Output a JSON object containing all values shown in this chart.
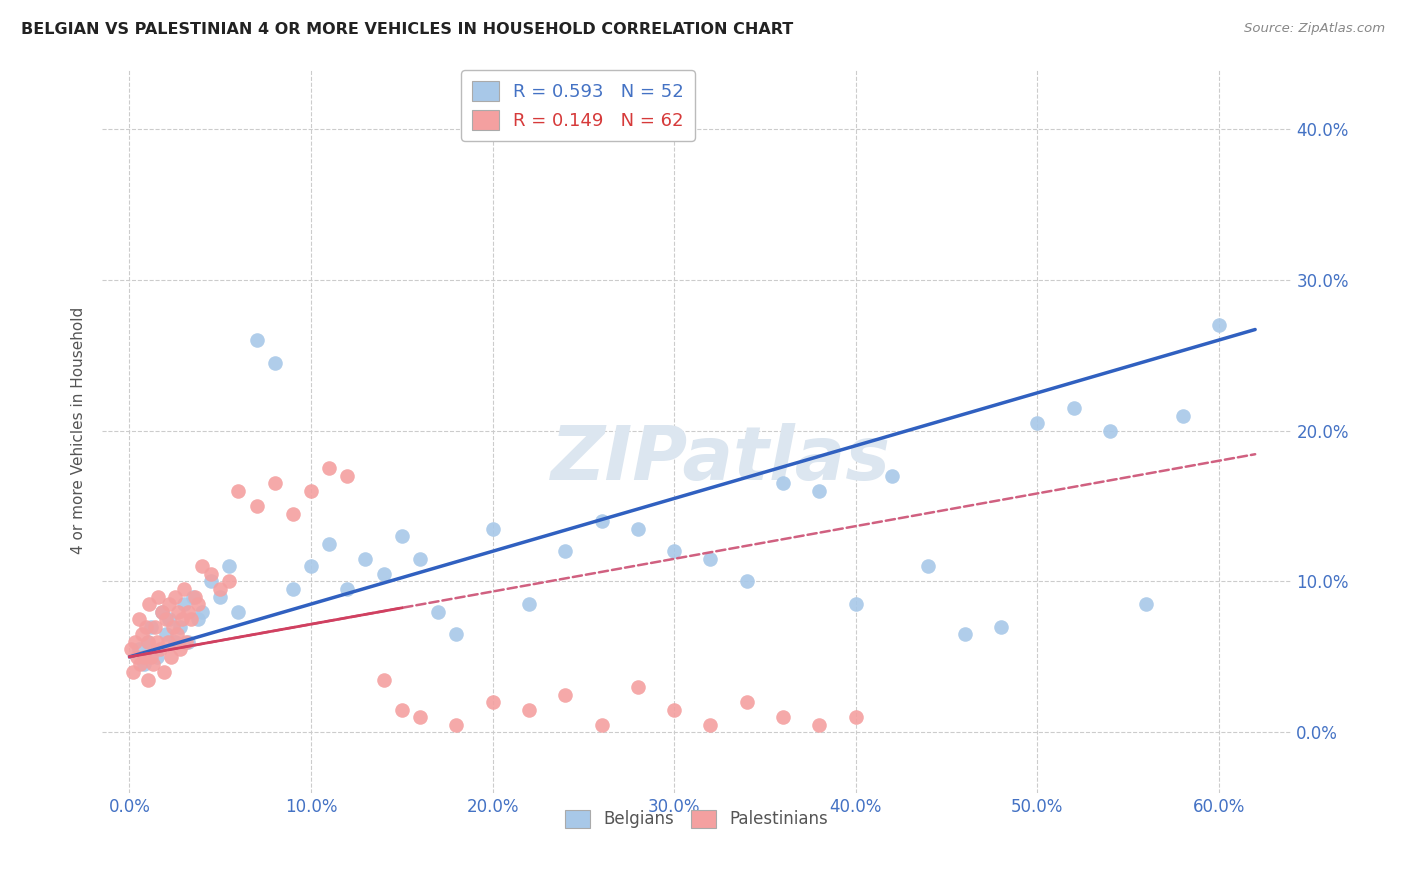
{
  "title": "BELGIAN VS PALESTINIAN 4 OR MORE VEHICLES IN HOUSEHOLD CORRELATION CHART",
  "source": "Source: ZipAtlas.com",
  "ylabel": "4 or more Vehicles in Household",
  "ylim": [
    -4.0,
    44.0
  ],
  "xlim": [
    -1.5,
    64.0
  ],
  "belgian_R": 0.593,
  "belgian_N": 52,
  "palestinian_R": 0.149,
  "palestinian_N": 62,
  "belgian_color": "#a8c8e8",
  "palestinian_color": "#f4a0a0",
  "belgian_line_color": "#3060c0",
  "palestinian_line_color": "#d04060",
  "palestinian_dash_color": "#d06080",
  "background_color": "#ffffff",
  "grid_color": "#cccccc",
  "watermark": "ZIPatlas",
  "watermark_color": "#dce6f0",
  "belgian_x": [
    0.5,
    0.8,
    1.0,
    1.2,
    1.5,
    1.8,
    2.0,
    2.2,
    2.5,
    2.8,
    3.0,
    3.2,
    3.5,
    3.8,
    4.0,
    4.5,
    5.0,
    5.5,
    6.0,
    7.0,
    8.0,
    9.0,
    10.0,
    11.0,
    12.0,
    13.0,
    14.0,
    15.0,
    16.0,
    17.0,
    18.0,
    20.0,
    22.0,
    24.0,
    26.0,
    28.0,
    30.0,
    32.0,
    34.0,
    36.0,
    38.0,
    40.0,
    42.0,
    44.0,
    46.0,
    48.0,
    50.0,
    52.0,
    54.0,
    56.0,
    58.0,
    60.0
  ],
  "belgian_y": [
    5.5,
    4.5,
    6.0,
    7.0,
    5.0,
    8.0,
    6.5,
    7.5,
    6.0,
    7.0,
    8.5,
    6.0,
    9.0,
    7.5,
    8.0,
    10.0,
    9.0,
    11.0,
    8.0,
    26.0,
    24.5,
    9.5,
    11.0,
    12.5,
    9.5,
    11.5,
    10.5,
    13.0,
    11.5,
    8.0,
    6.5,
    13.5,
    8.5,
    12.0,
    14.0,
    13.5,
    12.0,
    11.5,
    10.0,
    16.5,
    16.0,
    8.5,
    17.0,
    11.0,
    6.5,
    7.0,
    20.5,
    21.5,
    20.0,
    8.5,
    21.0,
    27.0
  ],
  "palestinian_x": [
    0.1,
    0.2,
    0.3,
    0.4,
    0.5,
    0.6,
    0.7,
    0.8,
    0.9,
    1.0,
    1.0,
    1.1,
    1.2,
    1.3,
    1.4,
    1.5,
    1.6,
    1.7,
    1.8,
    1.9,
    2.0,
    2.1,
    2.2,
    2.3,
    2.4,
    2.5,
    2.6,
    2.7,
    2.8,
    2.9,
    3.0,
    3.1,
    3.2,
    3.4,
    3.6,
    3.8,
    4.0,
    4.5,
    5.0,
    5.5,
    6.0,
    7.0,
    8.0,
    9.0,
    10.0,
    11.0,
    12.0,
    14.0,
    15.0,
    16.0,
    18.0,
    20.0,
    22.0,
    24.0,
    26.0,
    28.0,
    30.0,
    32.0,
    34.0,
    36.0,
    38.0,
    40.0
  ],
  "palestinian_y": [
    5.5,
    4.0,
    6.0,
    5.0,
    7.5,
    4.5,
    6.5,
    5.0,
    7.0,
    3.5,
    6.0,
    8.5,
    5.0,
    4.5,
    7.0,
    6.0,
    9.0,
    5.5,
    8.0,
    4.0,
    7.5,
    6.0,
    8.5,
    5.0,
    7.0,
    9.0,
    6.5,
    8.0,
    5.5,
    7.5,
    9.5,
    6.0,
    8.0,
    7.5,
    9.0,
    8.5,
    11.0,
    10.5,
    9.5,
    10.0,
    16.0,
    15.0,
    16.5,
    14.5,
    16.0,
    17.5,
    17.0,
    3.5,
    1.5,
    1.0,
    0.5,
    2.0,
    1.5,
    2.5,
    0.5,
    3.0,
    1.5,
    0.5,
    2.0,
    1.0,
    0.5,
    1.0
  ],
  "x_tick_vals": [
    0,
    10,
    20,
    30,
    40,
    50,
    60
  ],
  "y_tick_vals": [
    0,
    10,
    20,
    30,
    40
  ]
}
